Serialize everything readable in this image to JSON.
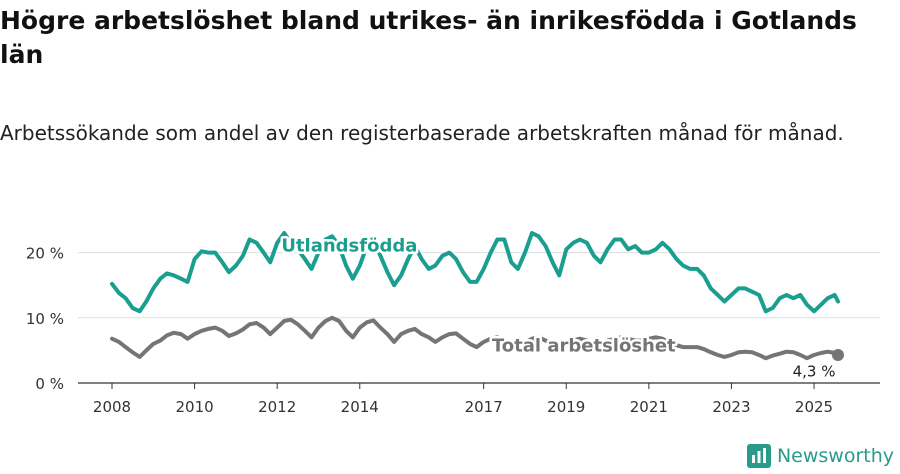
{
  "title": "Högre arbetslöshet bland utrikes- än inrikesfödda i Gotlands län",
  "subtitle": "Arbetssökande som andel av den registerbaserade arbetskraften månad för månad.",
  "brand": {
    "name": "Newsworthy",
    "icon": "newsworthy-logo-icon",
    "color": "#2a9a8a"
  },
  "chart_data": {
    "type": "line",
    "xlabel": "",
    "ylabel": "",
    "xlim": [
      2008,
      2025.75
    ],
    "ylim": [
      0,
      23
    ],
    "yticks": [
      {
        "value": 0,
        "label": "0 %"
      },
      {
        "value": 10,
        "label": "10 %"
      },
      {
        "value": 20,
        "label": "20 %"
      }
    ],
    "xticks": [
      {
        "value": 2008,
        "label": "2008"
      },
      {
        "value": 2010,
        "label": "2010"
      },
      {
        "value": 2012,
        "label": "2012"
      },
      {
        "value": 2014,
        "label": "2014"
      },
      {
        "value": 2017,
        "label": "2017"
      },
      {
        "value": 2019,
        "label": "2019"
      },
      {
        "value": 2021,
        "label": "2021"
      },
      {
        "value": 2023,
        "label": "2023"
      },
      {
        "value": 2025,
        "label": "2025"
      }
    ],
    "grid": true,
    "series": [
      {
        "name": "Utlandsfödda",
        "color": "#1a9e8f",
        "points": [
          [
            2008.0,
            15.2
          ],
          [
            2008.17,
            13.8
          ],
          [
            2008.33,
            13.0
          ],
          [
            2008.5,
            11.5
          ],
          [
            2008.67,
            11.0
          ],
          [
            2008.83,
            12.5
          ],
          [
            2009.0,
            14.5
          ],
          [
            2009.17,
            16.0
          ],
          [
            2009.33,
            16.8
          ],
          [
            2009.5,
            16.5
          ],
          [
            2009.67,
            16.0
          ],
          [
            2009.83,
            15.5
          ],
          [
            2010.0,
            19.0
          ],
          [
            2010.17,
            20.2
          ],
          [
            2010.33,
            20.0
          ],
          [
            2010.5,
            20.0
          ],
          [
            2010.67,
            18.5
          ],
          [
            2010.83,
            17.0
          ],
          [
            2011.0,
            18.0
          ],
          [
            2011.17,
            19.5
          ],
          [
            2011.33,
            22.0
          ],
          [
            2011.5,
            21.5
          ],
          [
            2011.67,
            20.0
          ],
          [
            2011.83,
            18.5
          ],
          [
            2012.0,
            21.5
          ],
          [
            2012.17,
            23.0
          ],
          [
            2012.33,
            21.5
          ],
          [
            2012.5,
            20.5
          ],
          [
            2012.67,
            19.0
          ],
          [
            2012.83,
            17.5
          ],
          [
            2013.0,
            20.0
          ],
          [
            2013.17,
            22.0
          ],
          [
            2013.33,
            22.5
          ],
          [
            2013.5,
            21.0
          ],
          [
            2013.67,
            18.0
          ],
          [
            2013.83,
            16.0
          ],
          [
            2014.0,
            18.0
          ],
          [
            2014.17,
            21.0
          ],
          [
            2014.33,
            22.0
          ],
          [
            2014.5,
            19.5
          ],
          [
            2014.67,
            17.0
          ],
          [
            2014.83,
            15.0
          ],
          [
            2015.0,
            16.5
          ],
          [
            2015.17,
            19.0
          ],
          [
            2015.33,
            21.0
          ],
          [
            2015.5,
            19.0
          ],
          [
            2015.67,
            17.5
          ],
          [
            2015.83,
            18.0
          ],
          [
            2016.0,
            19.5
          ],
          [
            2016.17,
            20.0
          ],
          [
            2016.33,
            19.0
          ],
          [
            2016.5,
            17.0
          ],
          [
            2016.67,
            15.5
          ],
          [
            2016.83,
            15.5
          ],
          [
            2017.0,
            17.5
          ],
          [
            2017.17,
            20.0
          ],
          [
            2017.33,
            22.0
          ],
          [
            2017.5,
            22.0
          ],
          [
            2017.67,
            18.5
          ],
          [
            2017.83,
            17.5
          ],
          [
            2018.0,
            20.0
          ],
          [
            2018.17,
            23.0
          ],
          [
            2018.33,
            22.5
          ],
          [
            2018.5,
            21.0
          ],
          [
            2018.67,
            18.5
          ],
          [
            2018.83,
            16.5
          ],
          [
            2019.0,
            20.5
          ],
          [
            2019.17,
            21.5
          ],
          [
            2019.33,
            22.0
          ],
          [
            2019.5,
            21.5
          ],
          [
            2019.67,
            19.5
          ],
          [
            2019.83,
            18.5
          ],
          [
            2020.0,
            20.5
          ],
          [
            2020.17,
            22.0
          ],
          [
            2020.33,
            22.0
          ],
          [
            2020.5,
            20.5
          ],
          [
            2020.67,
            21.0
          ],
          [
            2020.83,
            20.0
          ],
          [
            2021.0,
            20.0
          ],
          [
            2021.17,
            20.5
          ],
          [
            2021.33,
            21.5
          ],
          [
            2021.5,
            20.5
          ],
          [
            2021.67,
            19.0
          ],
          [
            2021.83,
            18.0
          ],
          [
            2022.0,
            17.5
          ],
          [
            2022.17,
            17.5
          ],
          [
            2022.33,
            16.5
          ],
          [
            2022.5,
            14.5
          ],
          [
            2022.67,
            13.5
          ],
          [
            2022.83,
            12.5
          ],
          [
            2023.0,
            13.5
          ],
          [
            2023.17,
            14.5
          ],
          [
            2023.33,
            14.5
          ],
          [
            2023.5,
            14.0
          ],
          [
            2023.67,
            13.5
          ],
          [
            2023.83,
            11.0
          ],
          [
            2024.0,
            11.5
          ],
          [
            2024.17,
            13.0
          ],
          [
            2024.33,
            13.5
          ],
          [
            2024.5,
            13.0
          ],
          [
            2024.67,
            13.5
          ],
          [
            2024.83,
            12.0
          ],
          [
            2025.0,
            11.0
          ],
          [
            2025.17,
            12.0
          ],
          [
            2025.33,
            13.0
          ],
          [
            2025.5,
            13.5
          ],
          [
            2025.58,
            12.5
          ]
        ],
        "label": {
          "text": "Utlandsfödda",
          "x": 2012.1,
          "y": 20.2
        }
      },
      {
        "name": "Total arbetslöshet",
        "color": "#757575",
        "points": [
          [
            2008.0,
            6.8
          ],
          [
            2008.17,
            6.3
          ],
          [
            2008.33,
            5.5
          ],
          [
            2008.5,
            4.7
          ],
          [
            2008.67,
            4.0
          ],
          [
            2008.83,
            5.0
          ],
          [
            2009.0,
            6.0
          ],
          [
            2009.17,
            6.5
          ],
          [
            2009.33,
            7.3
          ],
          [
            2009.5,
            7.7
          ],
          [
            2009.67,
            7.5
          ],
          [
            2009.83,
            6.8
          ],
          [
            2010.0,
            7.5
          ],
          [
            2010.17,
            8.0
          ],
          [
            2010.33,
            8.3
          ],
          [
            2010.5,
            8.5
          ],
          [
            2010.67,
            8.0
          ],
          [
            2010.83,
            7.2
          ],
          [
            2011.0,
            7.6
          ],
          [
            2011.17,
            8.2
          ],
          [
            2011.33,
            9.0
          ],
          [
            2011.5,
            9.2
          ],
          [
            2011.67,
            8.5
          ],
          [
            2011.83,
            7.5
          ],
          [
            2012.0,
            8.5
          ],
          [
            2012.17,
            9.5
          ],
          [
            2012.33,
            9.7
          ],
          [
            2012.5,
            9.0
          ],
          [
            2012.67,
            8.0
          ],
          [
            2012.83,
            7.0
          ],
          [
            2013.0,
            8.5
          ],
          [
            2013.17,
            9.5
          ],
          [
            2013.33,
            10.0
          ],
          [
            2013.5,
            9.5
          ],
          [
            2013.67,
            8.0
          ],
          [
            2013.83,
            7.0
          ],
          [
            2014.0,
            8.5
          ],
          [
            2014.17,
            9.3
          ],
          [
            2014.33,
            9.6
          ],
          [
            2014.5,
            8.5
          ],
          [
            2014.67,
            7.5
          ],
          [
            2014.83,
            6.3
          ],
          [
            2015.0,
            7.5
          ],
          [
            2015.17,
            8.0
          ],
          [
            2015.33,
            8.3
          ],
          [
            2015.5,
            7.5
          ],
          [
            2015.67,
            7.0
          ],
          [
            2015.83,
            6.3
          ],
          [
            2016.0,
            7.0
          ],
          [
            2016.17,
            7.5
          ],
          [
            2016.33,
            7.6
          ],
          [
            2016.5,
            6.8
          ],
          [
            2016.67,
            6.0
          ],
          [
            2016.83,
            5.5
          ],
          [
            2017.0,
            6.3
          ],
          [
            2017.17,
            6.8
          ],
          [
            2017.33,
            7.0
          ],
          [
            2017.5,
            6.5
          ],
          [
            2017.67,
            6.0
          ],
          [
            2017.83,
            5.5
          ],
          [
            2018.0,
            6.2
          ],
          [
            2018.17,
            6.8
          ],
          [
            2018.33,
            7.0
          ],
          [
            2018.5,
            6.5
          ],
          [
            2018.67,
            6.0
          ],
          [
            2018.83,
            5.5
          ],
          [
            2019.0,
            6.2
          ],
          [
            2019.17,
            6.5
          ],
          [
            2019.33,
            6.8
          ],
          [
            2019.5,
            6.5
          ],
          [
            2019.67,
            6.0
          ],
          [
            2019.83,
            5.5
          ],
          [
            2020.0,
            6.5
          ],
          [
            2020.17,
            6.8
          ],
          [
            2020.33,
            7.0
          ],
          [
            2020.5,
            6.8
          ],
          [
            2020.67,
            6.5
          ],
          [
            2020.83,
            6.5
          ],
          [
            2021.0,
            6.8
          ],
          [
            2021.17,
            7.0
          ],
          [
            2021.33,
            6.8
          ],
          [
            2021.5,
            6.2
          ],
          [
            2021.67,
            5.8
          ],
          [
            2021.83,
            5.5
          ],
          [
            2022.0,
            5.5
          ],
          [
            2022.17,
            5.5
          ],
          [
            2022.33,
            5.2
          ],
          [
            2022.5,
            4.7
          ],
          [
            2022.67,
            4.3
          ],
          [
            2022.83,
            4.0
          ],
          [
            2023.0,
            4.3
          ],
          [
            2023.17,
            4.7
          ],
          [
            2023.33,
            4.8
          ],
          [
            2023.5,
            4.7
          ],
          [
            2023.67,
            4.3
          ],
          [
            2023.83,
            3.8
          ],
          [
            2024.0,
            4.2
          ],
          [
            2024.17,
            4.5
          ],
          [
            2024.33,
            4.8
          ],
          [
            2024.5,
            4.7
          ],
          [
            2024.67,
            4.3
          ],
          [
            2024.83,
            3.8
          ],
          [
            2025.0,
            4.3
          ],
          [
            2025.17,
            4.6
          ],
          [
            2025.33,
            4.8
          ],
          [
            2025.5,
            4.6
          ],
          [
            2025.58,
            4.3
          ]
        ],
        "label": {
          "text": "Total arbetslöshet",
          "x": 2017.2,
          "y": 4.8
        },
        "end_label": {
          "text": "4,3 %",
          "x": 2025.0,
          "y": 1.0
        }
      }
    ]
  }
}
